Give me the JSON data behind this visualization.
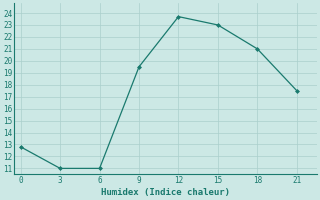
{
  "x": [
    0,
    3,
    6,
    9,
    12,
    15,
    18,
    21
  ],
  "y": [
    12.8,
    11.0,
    11.0,
    19.5,
    23.7,
    23.0,
    21.0,
    17.5
  ],
  "xlabel": "Humidex (Indice chaleur)",
  "xlim": [
    -0.5,
    22.5
  ],
  "ylim": [
    10.5,
    24.8
  ],
  "xticks": [
    0,
    3,
    6,
    9,
    12,
    15,
    18,
    21
  ],
  "yticks": [
    11,
    12,
    13,
    14,
    15,
    16,
    17,
    18,
    19,
    20,
    21,
    22,
    23,
    24
  ],
  "line_color": "#1a7a6e",
  "marker": "D",
  "marker_size": 2.0,
  "bg_color": "#cce8e5",
  "grid_color": "#aacfcc",
  "tick_fontsize": 5.5,
  "xlabel_fontsize": 6.5
}
